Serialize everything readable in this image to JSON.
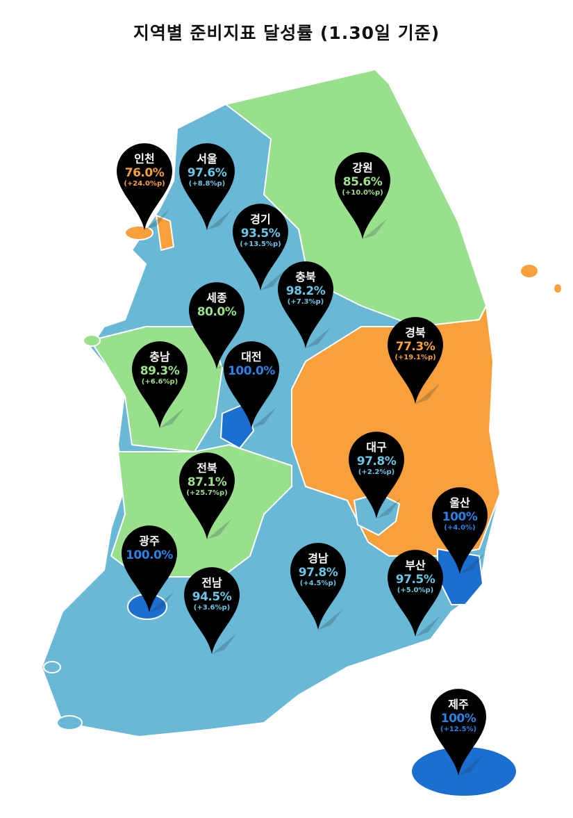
{
  "title": "지역별 준비지표 달성률 (1.30일 기준)",
  "colors": {
    "light_blue": "#68b8d6",
    "green": "#98e08c",
    "orange": "#f7a03c",
    "dark_blue": "#1a6fd0",
    "pin": "#000000"
  },
  "regions": [
    {
      "name": "인천",
      "value": "76.0%",
      "change": "(+24.0%p)",
      "color": "orange"
    },
    {
      "name": "서울",
      "value": "97.6%",
      "change": "(+8.8%p)",
      "color": "light_blue"
    },
    {
      "name": "경기",
      "value": "93.5%",
      "change": "(+13.5%p)",
      "color": "light_blue"
    },
    {
      "name": "강원",
      "value": "85.6%",
      "change": "(+10.0%p)",
      "color": "green"
    },
    {
      "name": "충북",
      "value": "98.2%",
      "change": "(+7.3%p)",
      "color": "light_blue"
    },
    {
      "name": "세종",
      "value": "80.0%",
      "change": "",
      "color": "green"
    },
    {
      "name": "충남",
      "value": "89.3%",
      "change": "(+6.6%p)",
      "color": "green"
    },
    {
      "name": "대전",
      "value": "100.0%",
      "change": "",
      "color": "dark_blue"
    },
    {
      "name": "경북",
      "value": "77.3%",
      "change": "(+19.1%p)",
      "color": "orange"
    },
    {
      "name": "대구",
      "value": "97.8%",
      "change": "(+2.2%p)",
      "color": "light_blue"
    },
    {
      "name": "울산",
      "value": "100%",
      "change": "(+4.0%)",
      "color": "dark_blue"
    },
    {
      "name": "전북",
      "value": "87.1%",
      "change": "(+25.7%p)",
      "color": "green"
    },
    {
      "name": "광주",
      "value": "100.0%",
      "change": "",
      "color": "dark_blue"
    },
    {
      "name": "전남",
      "value": "94.5%",
      "change": "(+3.6%p)",
      "color": "light_blue"
    },
    {
      "name": "경남",
      "value": "97.8%",
      "change": "(+4.5%p)",
      "color": "light_blue"
    },
    {
      "name": "부산",
      "value": "97.5%",
      "change": "(+5.0%p)",
      "color": "light_blue"
    },
    {
      "name": "제주",
      "value": "100%",
      "change": "(+12.5%)",
      "color": "dark_blue"
    }
  ]
}
